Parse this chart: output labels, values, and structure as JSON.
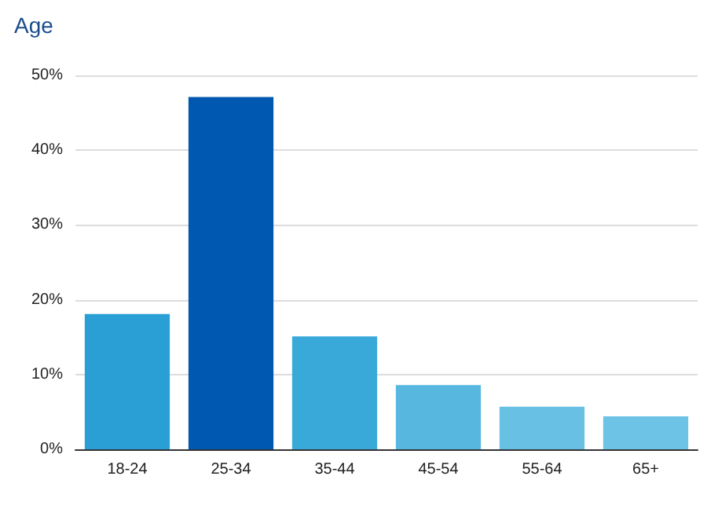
{
  "chart_data": {
    "type": "bar",
    "title": "Age",
    "categories": [
      "18-24",
      "25-34",
      "35-44",
      "45-54",
      "55-64",
      "65+"
    ],
    "values": [
      18.1,
      47.1,
      15.1,
      8.6,
      5.7,
      4.4
    ],
    "colors": [
      "#2a9fd6",
      "#0058b0",
      "#38a9d8",
      "#58b7df",
      "#68c0e4",
      "#6cc3e6"
    ],
    "ylim": [
      0,
      50
    ],
    "yticks": [
      {
        "value": 0,
        "label": "0%"
      },
      {
        "value": 10,
        "label": "10%"
      },
      {
        "value": 20,
        "label": "20%"
      },
      {
        "value": 30,
        "label": "30%"
      },
      {
        "value": 40,
        "label": "40%"
      },
      {
        "value": 50,
        "label": "50%"
      }
    ],
    "grid": "y"
  }
}
